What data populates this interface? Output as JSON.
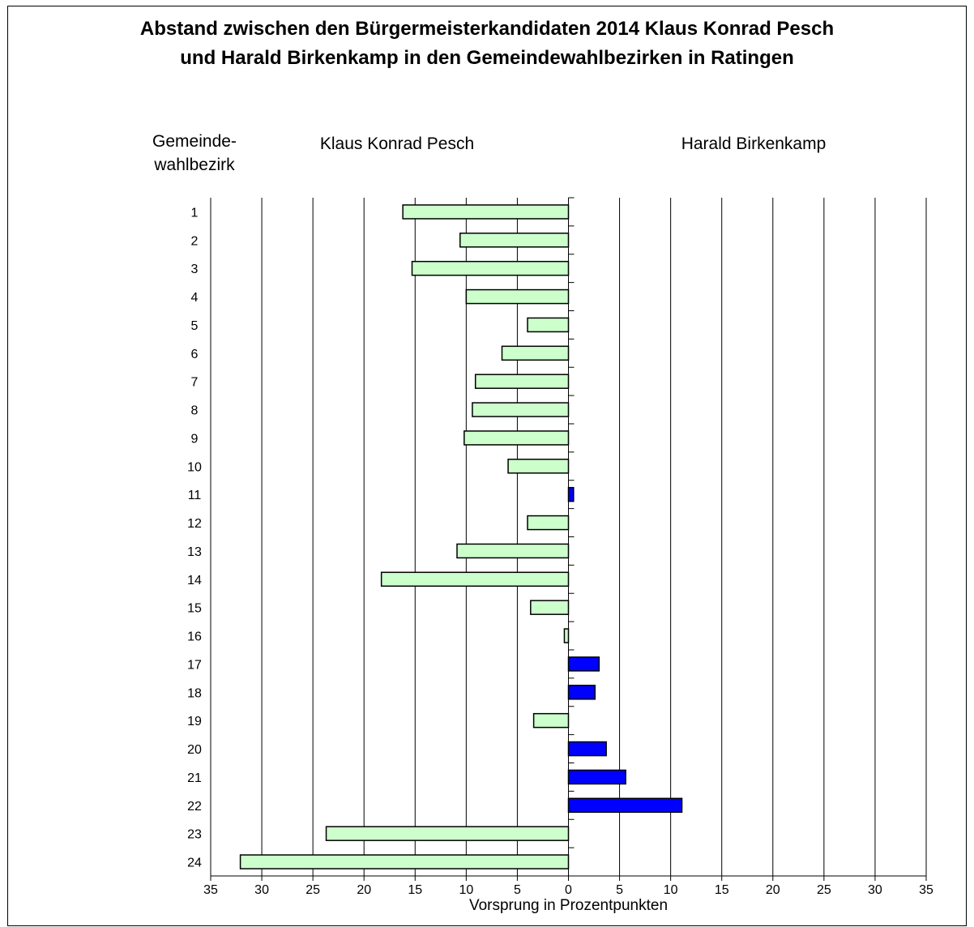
{
  "chart_data": {
    "type": "bar",
    "orientation": "horizontal",
    "title_line1": "Abstand zwischen den Bürgermeisterkandidaten 2014 Klaus Konrad Pesch",
    "title_line2": "und Harald Birkenkamp in den Gemeindewahlbezirken in Ratingen",
    "category_header_line1": "Gemeinde-",
    "category_header_line2": "wahlbezirk",
    "left_header": "Klaus Konrad Pesch",
    "right_header": "Harald Birkenkamp",
    "xlabel": "Vorsprung in Prozentpunkten",
    "xlim": [
      -35,
      35
    ],
    "x_tick_labels": [
      "35",
      "30",
      "25",
      "20",
      "15",
      "10",
      "5",
      "0",
      "5",
      "10",
      "15",
      "20",
      "25",
      "30",
      "35"
    ],
    "x_tick_values": [
      -35,
      -30,
      -25,
      -20,
      -15,
      -10,
      -5,
      0,
      5,
      10,
      15,
      20,
      25,
      30,
      35
    ],
    "categories": [
      "1",
      "2",
      "3",
      "4",
      "5",
      "6",
      "7",
      "8",
      "9",
      "10",
      "11",
      "12",
      "13",
      "14",
      "15",
      "16",
      "17",
      "18",
      "19",
      "20",
      "21",
      "22",
      "23",
      "24"
    ],
    "values": [
      -16.2,
      -10.6,
      -15.3,
      -10.0,
      -4.0,
      -6.5,
      -9.1,
      -9.4,
      -10.2,
      -5.9,
      0.5,
      -4.0,
      -10.9,
      -18.3,
      -3.7,
      -0.4,
      3.0,
      2.6,
      -3.4,
      3.7,
      5.6,
      11.1,
      -23.7,
      -32.1
    ],
    "series": [
      {
        "name": "Klaus Konrad Pesch",
        "color": "#ccffcc"
      },
      {
        "name": "Harald Birkenkamp",
        "color": "#0000ff"
      }
    ],
    "grid": "vertical"
  }
}
